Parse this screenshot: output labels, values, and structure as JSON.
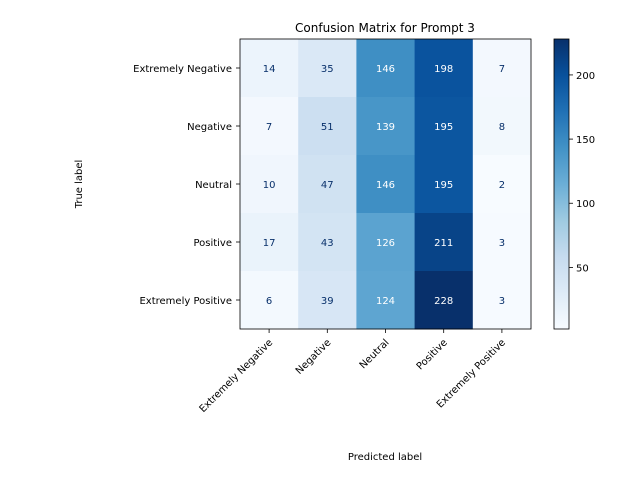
{
  "chart_data": {
    "type": "heatmap",
    "title": "Confusion Matrix for Prompt 3",
    "xlabel": "Predicted label",
    "ylabel": "True label",
    "row_labels": [
      "Extremely Negative",
      "Negative",
      "Neutral",
      "Positive",
      "Extremely Positive"
    ],
    "col_labels": [
      "Extremely Negative",
      "Negative",
      "Neutral",
      "Positive",
      "Extremely Positive"
    ],
    "values": [
      [
        14,
        35,
        146,
        198,
        7
      ],
      [
        7,
        51,
        139,
        195,
        8
      ],
      [
        10,
        47,
        146,
        195,
        2
      ],
      [
        17,
        43,
        126,
        211,
        3
      ],
      [
        6,
        39,
        124,
        228,
        3
      ]
    ],
    "colormap": "Blues",
    "colorbar": {
      "range": [
        2,
        228
      ],
      "ticks": [
        50,
        100,
        150,
        200
      ]
    },
    "grid": false
  }
}
